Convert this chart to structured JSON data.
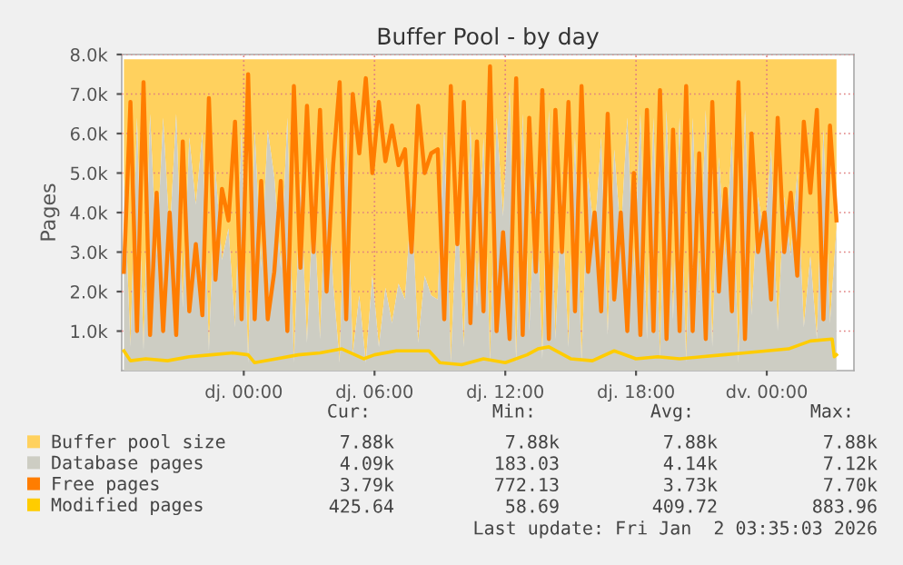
{
  "chart_data": {
    "type": "area",
    "title": "Buffer Pool - by day",
    "ylabel": "Pages",
    "xlim": [
      "2025-12-31T18:24",
      "2026-01-02T04:00"
    ],
    "ylim": [
      0,
      8000
    ],
    "xticks": [
      {
        "value": "2026-01-01T00:00",
        "label": "dj. 00:00"
      },
      {
        "value": "2026-01-01T06:00",
        "label": "dj. 06:00"
      },
      {
        "value": "2026-01-01T12:00",
        "label": "dj. 12:00"
      },
      {
        "value": "2026-01-01T18:00",
        "label": "dj. 18:00"
      },
      {
        "value": "2026-01-02T00:00",
        "label": "dv. 00:00"
      }
    ],
    "yticks": [
      {
        "value": 1000,
        "label": "1.0k"
      },
      {
        "value": 2000,
        "label": "2.0k"
      },
      {
        "value": 3000,
        "label": "3.0k"
      },
      {
        "value": 4000,
        "label": "4.0k"
      },
      {
        "value": 5000,
        "label": "5.0k"
      },
      {
        "value": 6000,
        "label": "6.0k"
      },
      {
        "value": 7000,
        "label": "7.0k"
      },
      {
        "value": 8000,
        "label": "8.0k"
      }
    ],
    "grid": true,
    "legend": "bottom",
    "x": [
      "2025-12-31T18:30",
      "2025-12-31T18:48",
      "2025-12-31T19:06",
      "2025-12-31T19:24",
      "2025-12-31T19:42",
      "2025-12-31T20:00",
      "2025-12-31T20:18",
      "2025-12-31T20:36",
      "2025-12-31T20:54",
      "2025-12-31T21:12",
      "2025-12-31T21:30",
      "2025-12-31T21:48",
      "2025-12-31T22:06",
      "2025-12-31T22:24",
      "2025-12-31T22:42",
      "2025-12-31T23:00",
      "2025-12-31T23:18",
      "2025-12-31T23:36",
      "2025-12-31T23:54",
      "2026-01-01T00:12",
      "2026-01-01T00:30",
      "2026-01-01T00:48",
      "2026-01-01T01:06",
      "2026-01-01T01:24",
      "2026-01-01T01:42",
      "2026-01-01T02:00",
      "2026-01-01T02:18",
      "2026-01-01T02:36",
      "2026-01-01T02:54",
      "2026-01-01T03:12",
      "2026-01-01T03:30",
      "2026-01-01T03:48",
      "2026-01-01T04:06",
      "2026-01-01T04:24",
      "2026-01-01T04:42",
      "2026-01-01T05:00",
      "2026-01-01T05:18",
      "2026-01-01T05:36",
      "2026-01-01T05:54",
      "2026-01-01T06:12",
      "2026-01-01T06:30",
      "2026-01-01T06:48",
      "2026-01-01T07:06",
      "2026-01-01T07:24",
      "2026-01-01T07:42",
      "2026-01-01T08:00",
      "2026-01-01T08:18",
      "2026-01-01T08:36",
      "2026-01-01T08:54",
      "2026-01-01T09:12",
      "2026-01-01T09:30",
      "2026-01-01T09:48",
      "2026-01-01T10:06",
      "2026-01-01T10:24",
      "2026-01-01T10:42",
      "2026-01-01T11:00",
      "2026-01-01T11:18",
      "2026-01-01T11:36",
      "2026-01-01T11:54",
      "2026-01-01T12:12",
      "2026-01-01T12:30",
      "2026-01-01T12:48",
      "2026-01-01T13:06",
      "2026-01-01T13:24",
      "2026-01-01T13:42",
      "2026-01-01T14:00",
      "2026-01-01T14:18",
      "2026-01-01T14:36",
      "2026-01-01T14:54",
      "2026-01-01T15:12",
      "2026-01-01T15:30",
      "2026-01-01T15:48",
      "2026-01-01T16:06",
      "2026-01-01T16:24",
      "2026-01-01T16:42",
      "2026-01-01T17:00",
      "2026-01-01T17:18",
      "2026-01-01T17:36",
      "2026-01-01T17:54",
      "2026-01-01T18:12",
      "2026-01-01T18:30",
      "2026-01-01T18:48",
      "2026-01-01T19:06",
      "2026-01-01T19:24",
      "2026-01-01T19:42",
      "2026-01-01T20:00",
      "2026-01-01T20:18",
      "2026-01-01T20:36",
      "2026-01-01T20:54",
      "2026-01-01T21:12",
      "2026-01-01T21:30",
      "2026-01-01T21:48",
      "2026-01-01T22:06",
      "2026-01-01T22:24",
      "2026-01-01T22:42",
      "2026-01-01T23:00",
      "2026-01-01T23:18",
      "2026-01-01T23:36",
      "2026-01-01T23:54",
      "2026-01-02T00:12",
      "2026-01-02T00:30",
      "2026-01-02T00:48",
      "2026-01-02T01:06",
      "2026-01-02T01:24",
      "2026-01-02T01:42",
      "2026-01-02T02:00",
      "2026-01-02T02:18",
      "2026-01-02T02:36",
      "2026-01-02T02:54",
      "2026-01-02T03:12"
    ],
    "series": [
      {
        "name": "Buffer pool size",
        "color": "#ffd15e",
        "values": [
          7880,
          7880,
          7880,
          7880,
          7880,
          7880,
          7880,
          7880,
          7880,
          7880,
          7880,
          7880,
          7880,
          7880,
          7880,
          7880,
          7880,
          7880,
          7880,
          7880,
          7880,
          7880,
          7880,
          7880,
          7880,
          7880,
          7880,
          7880,
          7880,
          7880,
          7880,
          7880,
          7880,
          7880,
          7880,
          7880,
          7880,
          7880,
          7880,
          7880,
          7880,
          7880,
          7880,
          7880,
          7880,
          7880,
          7880,
          7880,
          7880,
          7880,
          7880,
          7880,
          7880,
          7880,
          7880,
          7880,
          7880,
          7880,
          7880,
          7880,
          7880,
          7880,
          7880,
          7880,
          7880,
          7880,
          7880,
          7880,
          7880,
          7880,
          7880,
          7880,
          7880,
          7880,
          7880,
          7880,
          7880,
          7880,
          7880,
          7880,
          7880,
          7880,
          7880,
          7880,
          7880,
          7880,
          7880,
          7880,
          7880,
          7880,
          7880,
          7880,
          7880,
          7880,
          7880,
          7880,
          7880,
          7880,
          7880,
          7880,
          7880,
          7880,
          7880,
          7880,
          7880,
          7880,
          7880,
          7880,
          7880,
          7880
        ]
      },
      {
        "name": "Database pages",
        "color": "#cdcdc3",
        "values": [
          4900,
          600,
          6400,
          500,
          6500,
          2900,
          6400,
          3400,
          6500,
          1600,
          5900,
          4200,
          6000,
          500,
          5100,
          2800,
          3600,
          1100,
          6100,
          200,
          6100,
          2600,
          6100,
          4900,
          2600,
          6400,
          200,
          4800,
          700,
          4400,
          800,
          5400,
          2200,
          200,
          6100,
          400,
          1900,
          200,
          2400,
          600,
          2100,
          1200,
          2200,
          1800,
          4400,
          700,
          2400,
          1900,
          1800,
          6100,
          200,
          4200,
          600,
          6200,
          1600,
          5900,
          200,
          6400,
          3900,
          7100,
          200,
          6500,
          1000,
          4900,
          300,
          6600,
          800,
          4400,
          600,
          5900,
          200,
          4900,
          3400,
          5900,
          900,
          5600,
          3400,
          6400,
          2400,
          6500,
          800,
          6400,
          300,
          6600,
          1300,
          6400,
          200,
          6400,
          1900,
          6600,
          600,
          5400,
          2800,
          5900,
          200,
          6600,
          1400,
          4400,
          3400,
          5600,
          1000,
          4400,
          2900,
          5000,
          1100,
          2900,
          800,
          6100,
          1200,
          3600
        ]
      },
      {
        "name": "Free pages",
        "type": "line",
        "color": "#ff7d00",
        "values": [
          2500,
          6800,
          1000,
          7300,
          900,
          4500,
          1000,
          4000,
          900,
          5800,
          1500,
          3200,
          1400,
          6900,
          2300,
          4600,
          3800,
          6300,
          1300,
          7500,
          1300,
          4800,
          1300,
          2500,
          4800,
          1000,
          7200,
          2600,
          6700,
          3000,
          6600,
          2000,
          5200,
          7300,
          1300,
          7000,
          5500,
          7400,
          5000,
          6800,
          5300,
          6200,
          5200,
          5600,
          3000,
          6700,
          5000,
          5500,
          5600,
          1300,
          7200,
          3200,
          6800,
          1200,
          5800,
          1500,
          7700,
          1000,
          3500,
          800,
          7400,
          900,
          6400,
          2500,
          7100,
          800,
          6600,
          3000,
          6800,
          1500,
          7200,
          2500,
          4000,
          1500,
          6500,
          1800,
          4000,
          1000,
          5000,
          900,
          6600,
          1000,
          7100,
          800,
          6100,
          1000,
          7200,
          1000,
          5500,
          800,
          6800,
          2000,
          4600,
          1500,
          7300,
          800,
          6000,
          3000,
          4000,
          1800,
          6400,
          3000,
          4500,
          2400,
          6300,
          4500,
          6600,
          1300,
          6200,
          3800
        ]
      },
      {
        "name": "Modified pages",
        "type": "line",
        "color": "#ffcc00",
        "x": [
          "2025-12-31T18:30",
          "2025-12-31T18:48",
          "2025-12-31T19:30",
          "2025-12-31T20:30",
          "2025-12-31T21:30",
          "2025-12-31T22:30",
          "2025-12-31T23:30",
          "2026-01-01T00:12",
          "2026-01-01T00:30",
          "2026-01-01T01:30",
          "2026-01-01T02:30",
          "2026-01-01T03:30",
          "2026-01-01T04:30",
          "2026-01-01T05:30",
          "2026-01-01T06:00",
          "2026-01-01T07:00",
          "2026-01-01T08:30",
          "2026-01-01T09:00",
          "2026-01-01T10:00",
          "2026-01-01T11:00",
          "2026-01-01T12:00",
          "2026-01-01T13:00",
          "2026-01-01T13:30",
          "2026-01-01T14:00",
          "2026-01-01T15:00",
          "2026-01-01T16:00",
          "2026-01-01T17:00",
          "2026-01-01T18:00",
          "2026-01-01T19:00",
          "2026-01-01T20:00",
          "2026-01-01T21:00",
          "2026-01-01T22:00",
          "2026-01-01T23:00",
          "2026-01-02T00:00",
          "2026-01-02T01:00",
          "2026-01-02T02:00",
          "2026-01-02T03:00",
          "2026-01-02T03:06",
          "2026-01-02T03:12"
        ],
        "values": [
          500,
          250,
          300,
          250,
          350,
          400,
          450,
          400,
          200,
          300,
          400,
          450,
          550,
          300,
          400,
          500,
          500,
          200,
          150,
          300,
          200,
          400,
          550,
          600,
          300,
          250,
          500,
          300,
          350,
          300,
          350,
          400,
          450,
          500,
          550,
          750,
          800,
          350,
          400
        ]
      }
    ],
    "annotations": [
      "Cur:",
      "Min:",
      "Avg:",
      "Max:",
      "7.88k",
      "7.88k",
      "7.88k",
      "7.88k",
      "4.09k",
      "183.03",
      "4.14k",
      "7.12k",
      "3.79k",
      "772.13",
      "3.73k",
      "7.70k",
      "425.64",
      "58.69",
      "409.72",
      "883.96",
      "Last update: Fri Jan  2 03:35:03 2026"
    ]
  }
}
